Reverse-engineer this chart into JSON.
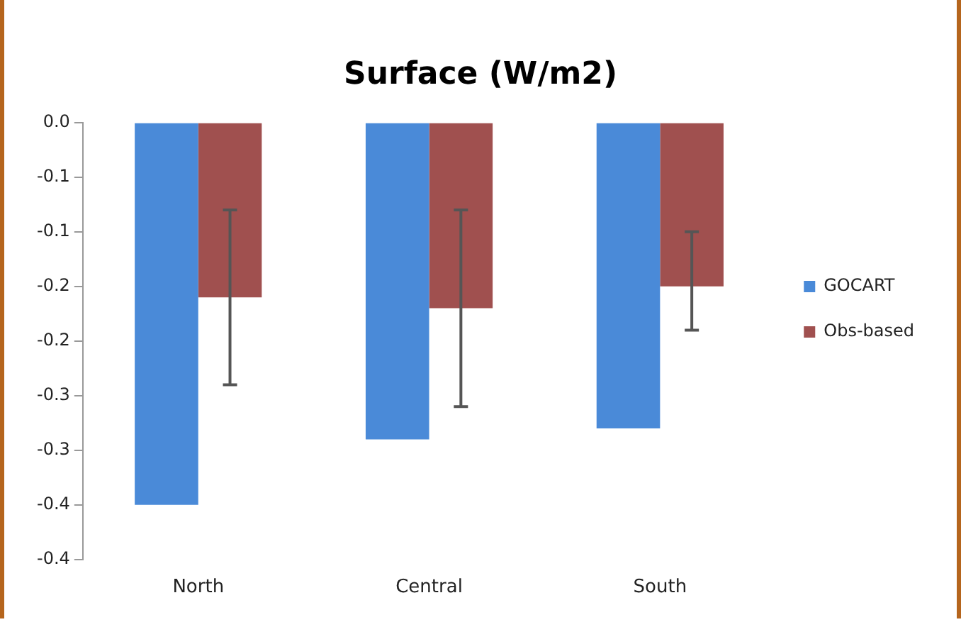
{
  "chart_data": {
    "type": "bar",
    "title": "Surface (W/m2)",
    "categories": [
      "North",
      "Central",
      "South"
    ],
    "series": [
      {
        "name": "GOCART",
        "color": "#4a8ad8",
        "values": [
          -0.35,
          -0.29,
          -0.28
        ]
      },
      {
        "name": "Obs-based",
        "color": "#a0504f",
        "values": [
          -0.16,
          -0.17,
          -0.15
        ],
        "errors": [
          [
            -0.24,
            -0.08
          ],
          [
            -0.26,
            -0.08
          ],
          [
            -0.19,
            -0.1
          ]
        ]
      }
    ],
    "ylim": [
      -0.4,
      0
    ],
    "yticks": [
      {
        "value": 0,
        "label": "0.0"
      },
      {
        "value": -0.05,
        "label": "-0.1"
      },
      {
        "value": -0.1,
        "label": "-0.1"
      },
      {
        "value": -0.15,
        "label": "-0.2"
      },
      {
        "value": -0.2,
        "label": "-0.2"
      },
      {
        "value": -0.25,
        "label": "-0.3"
      },
      {
        "value": -0.3,
        "label": "-0.3"
      },
      {
        "value": -0.35,
        "label": "-0.4"
      },
      {
        "value": -0.4,
        "label": "-0.4"
      }
    ],
    "grid": false,
    "legend": "right"
  }
}
